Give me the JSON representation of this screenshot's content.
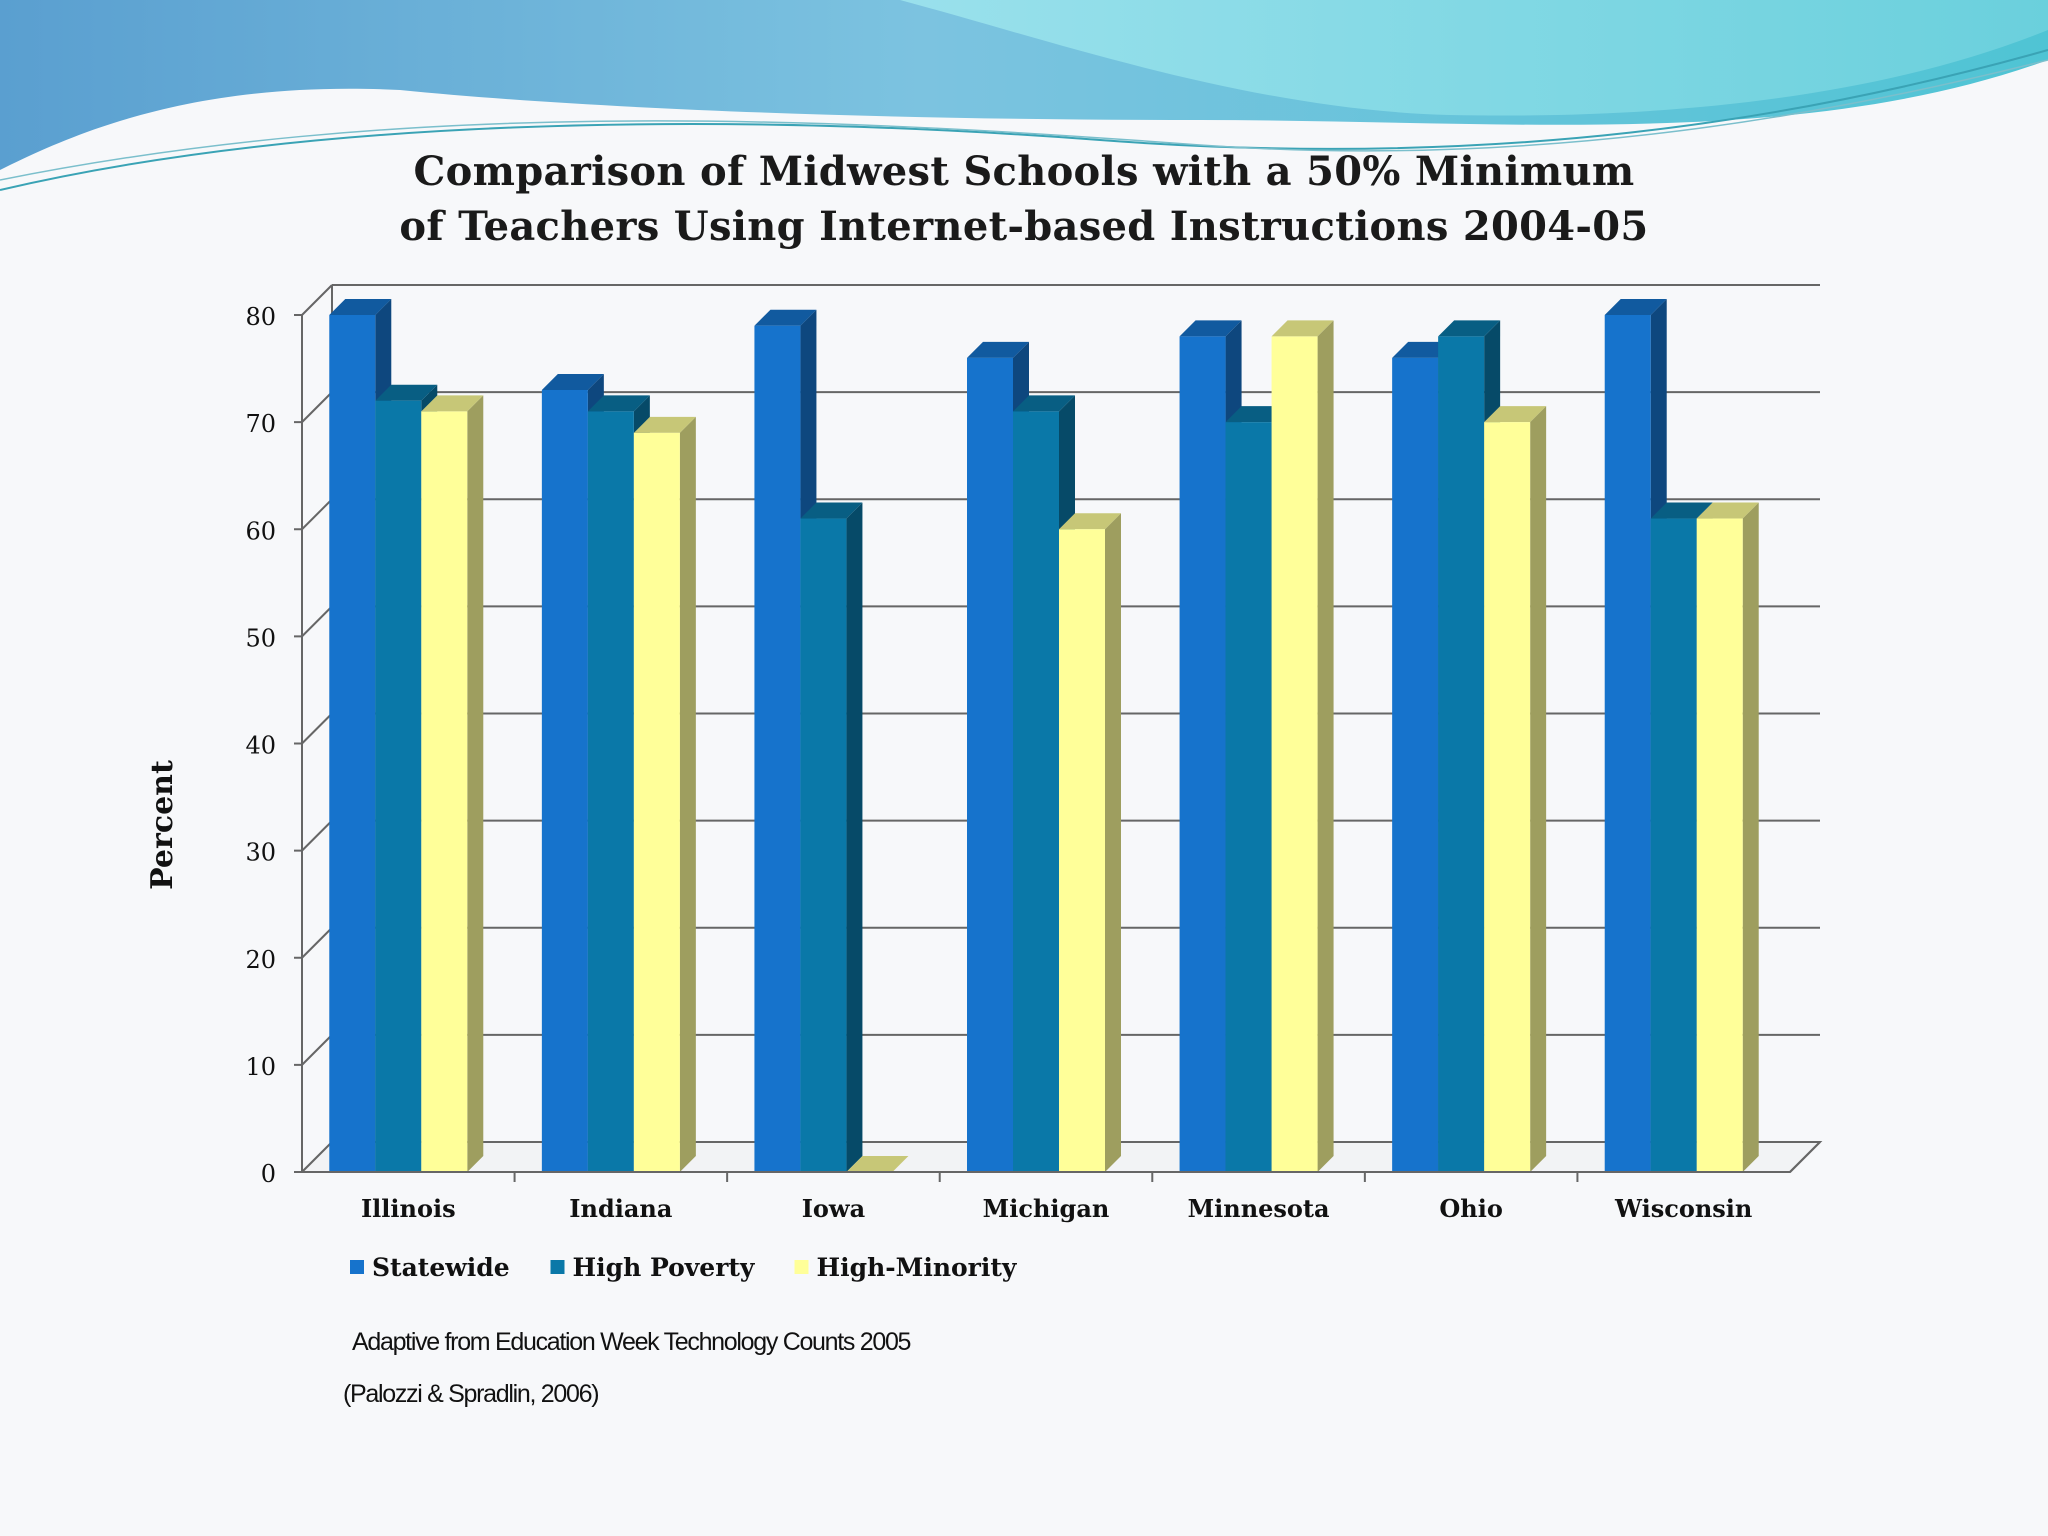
{
  "chart_data": {
    "type": "bar",
    "title_lines": [
      "Comparison of Midwest Schools with a 50% Minimum",
      "of Teachers Using Internet-based Instructions 2004-05"
    ],
    "xlabel": "",
    "ylabel": "Percent",
    "ylim": [
      0,
      80
    ],
    "yticks": [
      "0",
      "10",
      "20",
      "30",
      "40",
      "50",
      "60",
      "70",
      "80"
    ],
    "grid": true,
    "legend_position": "bottom-left",
    "categories": [
      "Illinois",
      "Indiana",
      "Iowa",
      "Michigan",
      "Minnesota",
      "Ohio",
      "Wisconsin"
    ],
    "series": [
      {
        "name": "Statewide",
        "color": "#1673cc",
        "values": [
          80,
          73,
          79,
          76,
          78,
          76,
          80
        ]
      },
      {
        "name": "High Poverty",
        "color": "#0a78a8",
        "values": [
          72,
          71,
          61,
          71,
          70,
          78,
          61
        ]
      },
      {
        "name": "High-Minority",
        "color": "#ffff99",
        "values": [
          71,
          69,
          0,
          60,
          78,
          70,
          61
        ]
      }
    ]
  },
  "source": {
    "line1": "Adaptive from Education Week Technology Counts 2005",
    "line2": "(Palozzi  & Spradlin, 2006)"
  }
}
